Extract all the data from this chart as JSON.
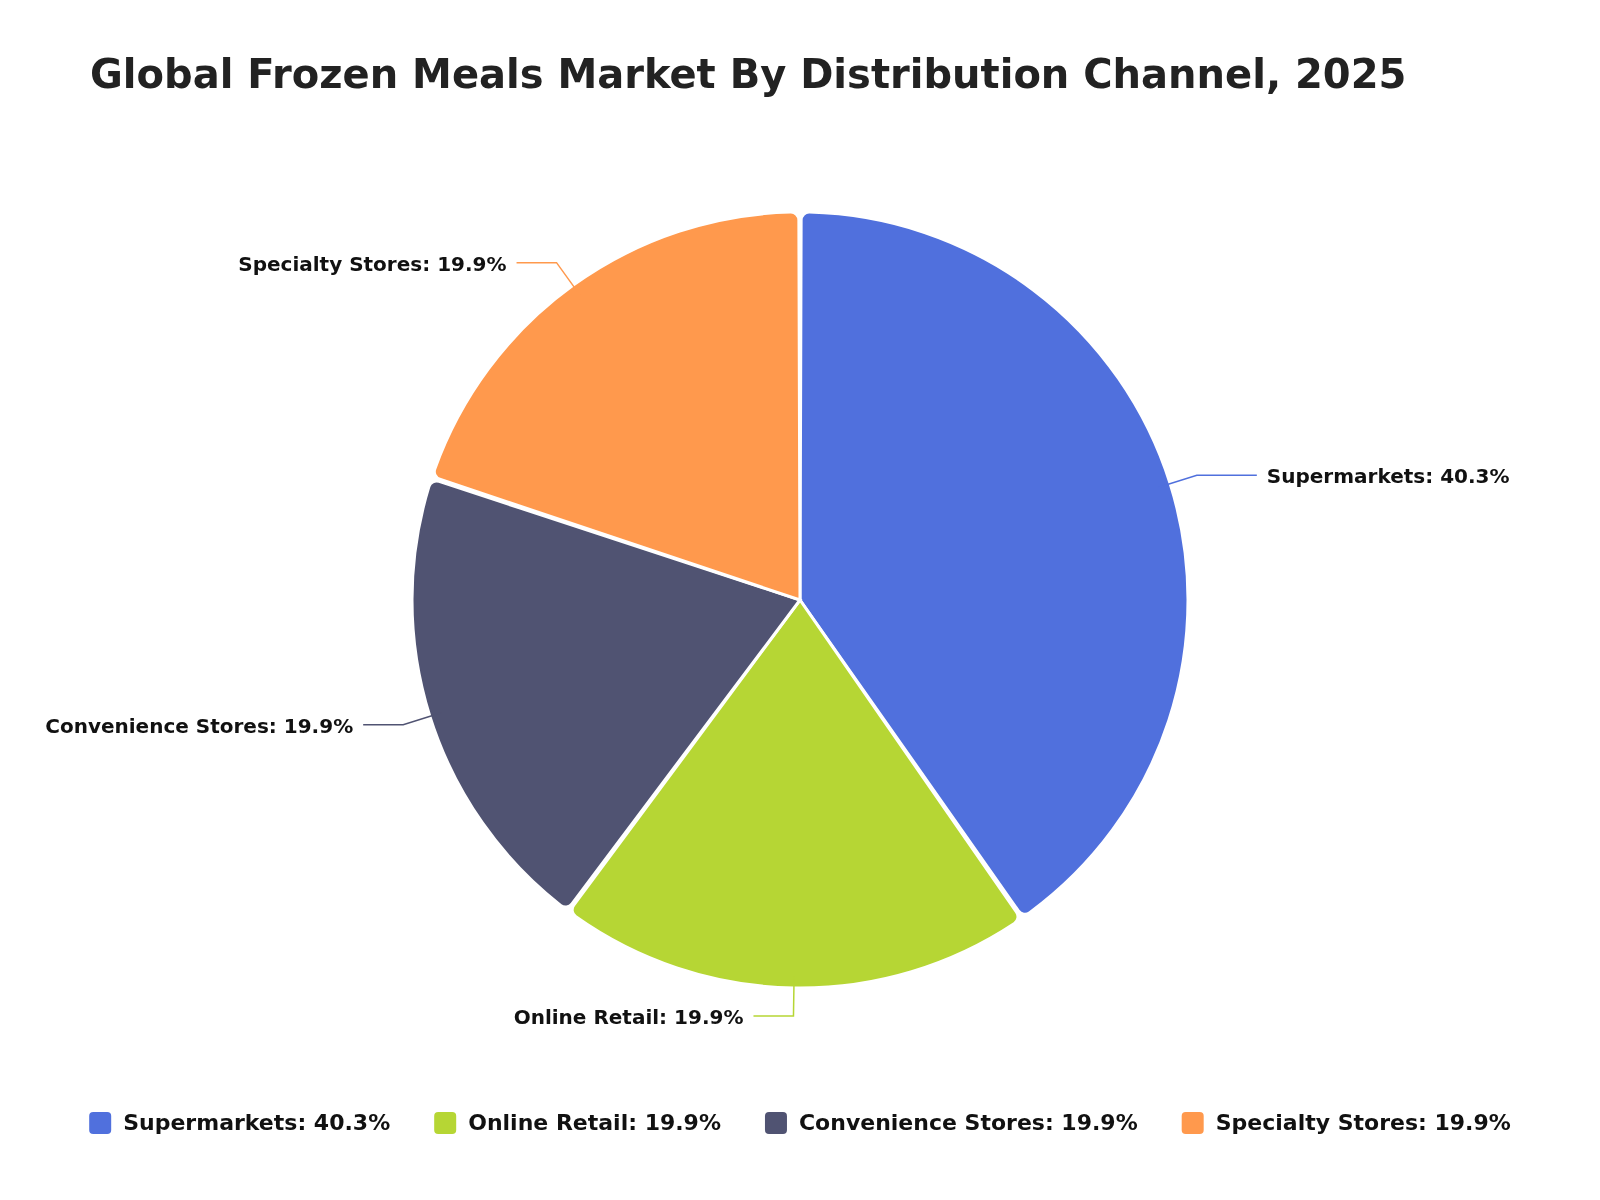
{
  "chart_data": {
    "type": "pie",
    "title": "Global Frozen Meals Market By Distribution Channel, 2025",
    "categories": [
      "Supermarkets: 40.3%",
      "Online Retail: 19.9%",
      "Convenience Stores: 19.9%",
      "Specialty Stores: 19.9%"
    ],
    "values": [
      40.3,
      19.9,
      19.9,
      19.9
    ],
    "colors": [
      "#5070dd",
      "#b6d634",
      "#505372",
      "#ff994d"
    ],
    "legend": "bottom"
  }
}
